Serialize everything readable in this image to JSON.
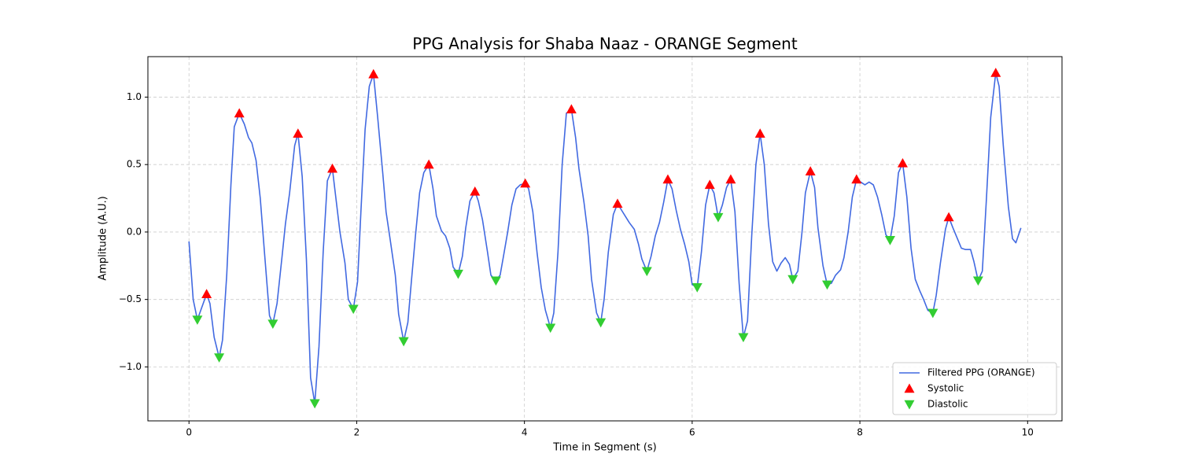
{
  "chart_data": {
    "type": "line",
    "title": "PPG Analysis for Shaba Naaz - ORANGE Segment",
    "xlabel": "Time in Segment (s)",
    "ylabel": "Amplitude (A.U.)",
    "xlim": [
      -0.49,
      10.41
    ],
    "ylim": [
      -1.4,
      1.3
    ],
    "xticks": [
      0,
      2,
      4,
      6,
      8,
      10
    ],
    "yticks": [
      {
        "value": -1.0,
        "label": "−1.0"
      },
      {
        "value": -0.5,
        "label": "−0.5"
      },
      {
        "value": 0.0,
        "label": "0.0"
      },
      0.5,
      {
        "value": 1.0,
        "label": "1.0"
      }
    ],
    "grid": true,
    "legend": "lower right",
    "series": [
      {
        "name": "Filtered PPG (ORANGE)",
        "color": "#4169e1",
        "type": "line",
        "x": [
          0,
          0.05,
          0.1,
          0.21,
          0.25,
          0.3,
          0.36,
          0.4,
          0.45,
          0.5,
          0.54,
          0.6,
          0.66,
          0.71,
          0.75,
          0.8,
          0.85,
          0.9,
          0.96,
          1.0,
          1.05,
          1.11,
          1.15,
          1.2,
          1.26,
          1.3,
          1.35,
          1.4,
          1.45,
          1.5,
          1.55,
          1.6,
          1.65,
          1.71,
          1.75,
          1.8,
          1.86,
          1.9,
          1.96,
          2.01,
          2.05,
          2.1,
          2.15,
          2.2,
          2.25,
          2.31,
          2.35,
          2.4,
          2.46,
          2.5,
          2.56,
          2.61,
          2.65,
          2.7,
          2.75,
          2.8,
          2.86,
          2.91,
          2.95,
          3.01,
          3.06,
          3.11,
          3.15,
          3.21,
          3.26,
          3.3,
          3.35,
          3.41,
          3.45,
          3.5,
          3.56,
          3.6,
          3.66,
          3.71,
          3.75,
          3.8,
          3.85,
          3.9,
          3.95,
          4.01,
          4.05,
          4.1,
          4.15,
          4.2,
          4.25,
          4.31,
          4.35,
          4.4,
          4.45,
          4.5,
          4.56,
          4.61,
          4.65,
          4.71,
          4.76,
          4.8,
          4.86,
          4.91,
          4.95,
          5.0,
          5.06,
          5.11,
          5.16,
          5.21,
          5.25,
          5.31,
          5.36,
          5.4,
          5.46,
          5.51,
          5.56,
          5.61,
          5.66,
          5.71,
          5.76,
          5.81,
          5.86,
          5.91,
          5.96,
          6.0,
          6.06,
          6.11,
          6.16,
          6.21,
          6.26,
          6.31,
          6.36,
          6.41,
          6.46,
          6.51,
          6.56,
          6.61,
          6.66,
          6.71,
          6.76,
          6.81,
          6.86,
          6.91,
          6.96,
          7.01,
          7.06,
          7.11,
          7.16,
          7.2,
          7.26,
          7.31,
          7.35,
          7.41,
          7.46,
          7.5,
          7.56,
          7.61,
          7.66,
          7.71,
          7.77,
          7.81,
          7.86,
          7.91,
          7.96,
          8.01,
          8.06,
          8.11,
          8.16,
          8.21,
          8.26,
          8.31,
          8.36,
          8.41,
          8.46,
          8.51,
          8.56,
          8.61,
          8.66,
          8.71,
          8.76,
          8.81,
          8.87,
          8.91,
          8.96,
          9.02,
          9.06,
          9.11,
          9.17,
          9.21,
          9.26,
          9.32,
          9.36,
          9.41,
          9.46,
          9.51,
          9.56,
          9.62,
          9.66,
          9.71,
          9.77,
          9.82,
          9.86,
          9.92
        ],
        "values": [
          -0.07,
          -0.5,
          -0.65,
          -0.46,
          -0.53,
          -0.78,
          -0.93,
          -0.8,
          -0.32,
          0.35,
          0.78,
          0.88,
          0.8,
          0.7,
          0.66,
          0.53,
          0.25,
          -0.15,
          -0.62,
          -0.68,
          -0.53,
          -0.18,
          0.06,
          0.29,
          0.64,
          0.73,
          0.41,
          -0.2,
          -1.08,
          -1.27,
          -0.85,
          -0.15,
          0.38,
          0.47,
          0.26,
          0,
          -0.23,
          -0.5,
          -0.57,
          -0.37,
          0.15,
          0.76,
          1.08,
          1.17,
          0.85,
          0.44,
          0.15,
          -0.06,
          -0.32,
          -0.61,
          -0.81,
          -0.67,
          -0.38,
          -0.03,
          0.29,
          0.44,
          0.5,
          0.32,
          0.12,
          0.01,
          -0.03,
          -0.12,
          -0.26,
          -0.31,
          -0.18,
          0.03,
          0.23,
          0.3,
          0.23,
          0.09,
          -0.15,
          -0.32,
          -0.36,
          -0.32,
          -0.18,
          0,
          0.2,
          0.32,
          0.35,
          0.36,
          0.32,
          0.15,
          -0.15,
          -0.41,
          -0.58,
          -0.71,
          -0.6,
          -0.15,
          0.5,
          0.88,
          0.91,
          0.7,
          0.47,
          0.22,
          -0.03,
          -0.35,
          -0.6,
          -0.67,
          -0.5,
          -0.15,
          0.13,
          0.21,
          0.16,
          0.11,
          0.07,
          0.02,
          -0.09,
          -0.2,
          -0.29,
          -0.18,
          -0.03,
          0.07,
          0.22,
          0.39,
          0.32,
          0.16,
          0.02,
          -0.09,
          -0.22,
          -0.39,
          -0.41,
          -0.15,
          0.2,
          0.35,
          0.29,
          0.11,
          0.2,
          0.33,
          0.39,
          0.15,
          -0.38,
          -0.78,
          -0.66,
          -0.03,
          0.5,
          0.73,
          0.5,
          0.06,
          -0.22,
          -0.29,
          -0.23,
          -0.19,
          -0.24,
          -0.35,
          -0.29,
          0,
          0.29,
          0.45,
          0.33,
          0.03,
          -0.25,
          -0.39,
          -0.38,
          -0.32,
          -0.28,
          -0.19,
          0,
          0.26,
          0.39,
          0.37,
          0.35,
          0.37,
          0.35,
          0.26,
          0.13,
          -0.02,
          -0.06,
          0.12,
          0.44,
          0.51,
          0.26,
          -0.12,
          -0.35,
          -0.43,
          -0.5,
          -0.58,
          -0.6,
          -0.47,
          -0.23,
          0.02,
          0.11,
          0.03,
          -0.06,
          -0.12,
          -0.13,
          -0.13,
          -0.22,
          -0.36,
          -0.29,
          0.26,
          0.85,
          1.18,
          1.08,
          0.64,
          0.19,
          -0.05,
          -0.08,
          0.03
        ]
      },
      {
        "name": "Systolic",
        "color": "#ff0000",
        "type": "scatter",
        "marker": "^",
        "x": [
          0.21,
          0.6,
          1.3,
          1.71,
          2.2,
          2.86,
          3.41,
          4.01,
          4.56,
          5.11,
          5.71,
          6.21,
          6.46,
          6.81,
          7.41,
          7.96,
          8.51,
          9.06,
          9.62
        ],
        "values": [
          -0.46,
          0.88,
          0.73,
          0.47,
          1.17,
          0.5,
          0.3,
          0.36,
          0.91,
          0.21,
          0.39,
          0.35,
          0.39,
          0.73,
          0.45,
          0.39,
          0.51,
          0.11,
          1.18
        ]
      },
      {
        "name": "Diastolic",
        "color": "#32cd32",
        "type": "scatter",
        "marker": "v",
        "x": [
          0.1,
          0.36,
          1.0,
          1.5,
          1.96,
          2.56,
          3.21,
          3.66,
          4.31,
          4.91,
          5.46,
          6.06,
          6.31,
          6.61,
          7.2,
          7.61,
          8.36,
          8.87,
          9.41
        ],
        "values": [
          -0.65,
          -0.93,
          -0.68,
          -1.27,
          -0.57,
          -0.81,
          -0.31,
          -0.36,
          -0.71,
          -0.67,
          -0.29,
          -0.41,
          0.11,
          -0.78,
          -0.35,
          -0.39,
          -0.06,
          -0.6,
          -0.36
        ]
      }
    ]
  }
}
